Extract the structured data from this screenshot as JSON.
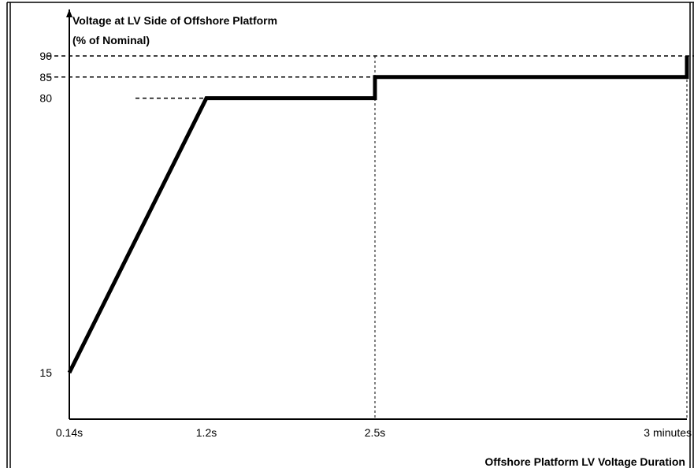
{
  "chart_data": {
    "type": "line",
    "title": "Voltage at LV Side of Offshore Platform",
    "subtitle": "(% of Nominal)",
    "x_label": "Offshore Platform LV Voltage Duration",
    "x": [
      0.14,
      1.2,
      2.5,
      2.5,
      180,
      180
    ],
    "series": [
      {
        "color": "#000000",
        "values": [
          15,
          80,
          80,
          85,
          85,
          90
        ]
      }
    ],
    "xlim": [
      0.14,
      180
    ],
    "xticks": [
      {
        "value": 0.14,
        "label": "0.14s"
      },
      {
        "value": 1.2,
        "label": "1.2s"
      },
      {
        "value": 2.5,
        "label": "2.5s"
      },
      {
        "value": 180,
        "label": "3 minutes"
      }
    ],
    "ylim": [
      4,
      101
    ],
    "yticks": [
      15,
      80,
      85,
      90
    ]
  }
}
